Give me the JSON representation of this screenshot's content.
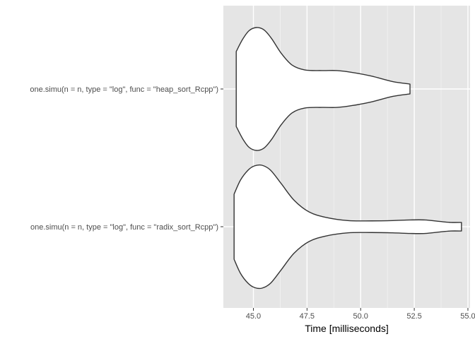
{
  "chart_data": {
    "type": "violin",
    "title": "",
    "xlabel": "Time [milliseconds]",
    "ylabel": "",
    "xlim": [
      43.6,
      55.1
    ],
    "x_ticks": [
      45.0,
      47.5,
      50.0,
      52.5,
      55.0
    ],
    "x_tick_labels": [
      "45.0",
      "47.5",
      "50.0",
      "52.5",
      "55.0"
    ],
    "x_minor_ticks": [
      46.25,
      48.75,
      51.25,
      53.75
    ],
    "grid": true,
    "categories": [
      "one.simu(n = n, type = \"log\", func = \"heap_sort_Rcpp\")",
      "one.simu(n = n, type = \"log\", func = \"radix_sort_Rcpp\")"
    ],
    "violins": [
      {
        "category": "one.simu(n = n, type = \"log\", func = \"heap_sort_Rcpp\")",
        "min": 44.2,
        "max": 52.3,
        "density_profile": [
          {
            "x": 44.2,
            "half_width": 0.61
          },
          {
            "x": 44.5,
            "half_width": 0.81
          },
          {
            "x": 44.8,
            "half_width": 0.95
          },
          {
            "x": 45.15,
            "half_width": 1.0
          },
          {
            "x": 45.5,
            "half_width": 0.96
          },
          {
            "x": 45.85,
            "half_width": 0.82
          },
          {
            "x": 46.3,
            "half_width": 0.58
          },
          {
            "x": 46.8,
            "half_width": 0.39
          },
          {
            "x": 47.4,
            "half_width": 0.31
          },
          {
            "x": 48.2,
            "half_width": 0.3
          },
          {
            "x": 48.9,
            "half_width": 0.3
          },
          {
            "x": 49.6,
            "half_width": 0.27
          },
          {
            "x": 50.5,
            "half_width": 0.21
          },
          {
            "x": 51.5,
            "half_width": 0.12
          },
          {
            "x": 52.3,
            "half_width": 0.08
          }
        ]
      },
      {
        "category": "one.simu(n = n, type = \"log\", func = \"radix_sort_Rcpp\")",
        "min": 44.1,
        "max": 54.7,
        "density_profile": [
          {
            "x": 44.1,
            "half_width": 0.53
          },
          {
            "x": 44.4,
            "half_width": 0.76
          },
          {
            "x": 44.75,
            "half_width": 0.92
          },
          {
            "x": 45.05,
            "half_width": 0.99
          },
          {
            "x": 45.4,
            "half_width": 1.0
          },
          {
            "x": 45.8,
            "half_width": 0.92
          },
          {
            "x": 46.3,
            "half_width": 0.7
          },
          {
            "x": 46.9,
            "half_width": 0.43
          },
          {
            "x": 47.6,
            "half_width": 0.24
          },
          {
            "x": 48.4,
            "half_width": 0.15
          },
          {
            "x": 49.4,
            "half_width": 0.1
          },
          {
            "x": 50.5,
            "half_width": 0.095
          },
          {
            "x": 51.5,
            "half_width": 0.1
          },
          {
            "x": 52.3,
            "half_width": 0.11
          },
          {
            "x": 53.0,
            "half_width": 0.11
          },
          {
            "x": 53.7,
            "half_width": 0.085
          },
          {
            "x": 54.2,
            "half_width": 0.07
          },
          {
            "x": 54.7,
            "half_width": 0.07
          }
        ]
      }
    ],
    "colors": {
      "panel_background": "#e5e5e5",
      "grid_major": "#ffffff",
      "grid_minor": "#f2f2f2",
      "violin_fill": "#ffffff",
      "violin_stroke": "#333333",
      "tick_text": "#4d4d4d",
      "title_text": "#000000"
    }
  }
}
